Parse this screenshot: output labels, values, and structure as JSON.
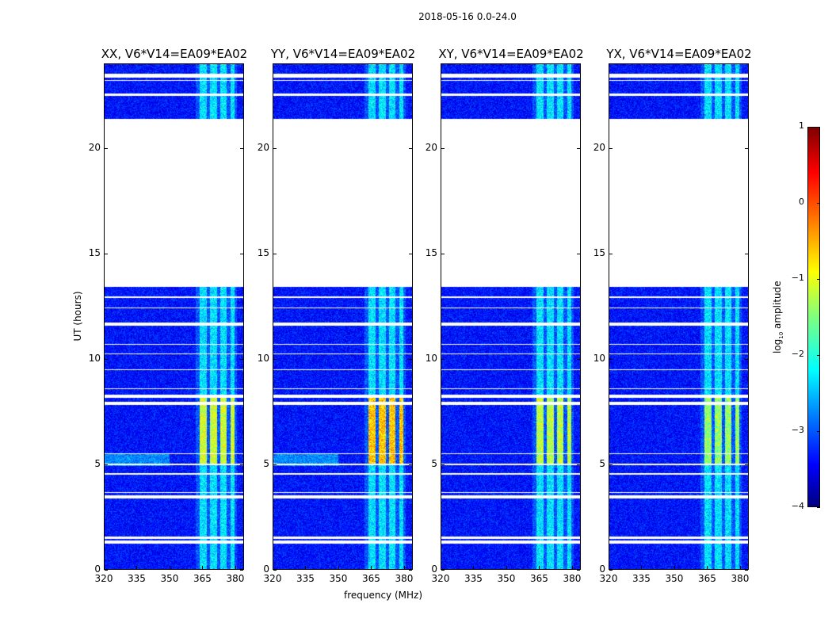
{
  "chart_data": {
    "type": "heatmap",
    "suptitle": "2018-05-16 0.0-24.0",
    "xlabel": "frequency (MHz)",
    "ylabel": "UT (hours)",
    "xlim": [
      320,
      384
    ],
    "ylim": [
      0,
      24
    ],
    "xticks": [
      "320",
      "335",
      "350",
      "365",
      "380"
    ],
    "yticks": [
      "0",
      "5",
      "10",
      "15",
      "20"
    ],
    "colormap": "jet",
    "colorbar": {
      "label_prefix": "log",
      "label_sub": "10",
      "label_suffix": " amplitude",
      "range": [
        -4,
        1
      ],
      "ticks": [
        "−4",
        "−3",
        "−2",
        "−1",
        "0",
        "1"
      ]
    },
    "no_data_interval_hours": [
      13.4,
      21.4
    ],
    "flagged_rows_hours": [
      [
        1.2,
        1.35
      ],
      [
        1.45,
        1.55
      ],
      [
        3.35,
        3.5
      ],
      [
        3.6,
        3.65
      ],
      [
        4.5,
        4.55
      ],
      [
        4.95,
        5.0
      ],
      [
        5.45,
        5.5
      ],
      [
        7.8,
        7.95
      ],
      [
        8.15,
        8.3
      ],
      [
        8.55,
        8.6
      ],
      [
        9.45,
        9.5
      ],
      [
        10.2,
        10.25
      ],
      [
        10.65,
        10.7
      ],
      [
        11.55,
        11.7
      ],
      [
        12.4,
        12.45
      ],
      [
        12.9,
        12.95
      ],
      [
        22.5,
        22.6
      ],
      [
        23.2,
        23.25
      ],
      [
        23.35,
        23.55
      ]
    ],
    "background_log_amplitude": -3.3,
    "rfi_channels_mhz": [
      [
        364,
        367
      ],
      [
        368.5,
        372
      ],
      [
        373.5,
        376.5
      ],
      [
        378,
        380
      ]
    ],
    "strong_rfi_interval_hours": [
      5.0,
      8.2
    ],
    "panels": [
      {
        "title": "XX, V6*V14=EA09*EA02",
        "rfi_peak_log_amplitude": -0.8
      },
      {
        "title": "YY, V6*V14=EA09*EA02",
        "rfi_peak_log_amplitude": -0.3
      },
      {
        "title": "XY, V6*V14=EA09*EA02",
        "rfi_peak_log_amplitude": -0.9
      },
      {
        "title": "YX, V6*V14=EA09*EA02",
        "rfi_peak_log_amplitude": -1.1
      }
    ]
  }
}
